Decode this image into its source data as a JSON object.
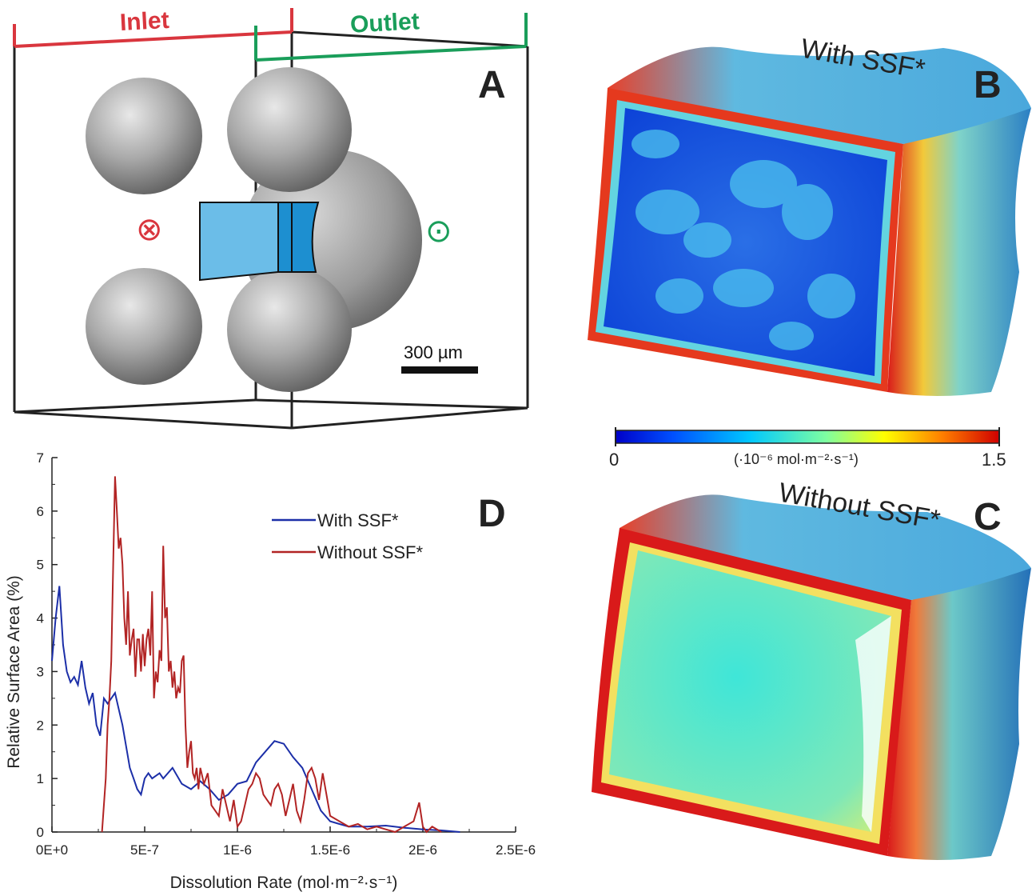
{
  "panelA": {
    "letter": "A",
    "inlet_label": "Inlet",
    "outlet_label": "Outlet",
    "scale_label": "300 µm",
    "inlet_symbol": "⊗",
    "outlet_symbol": "⊙",
    "colors": {
      "inlet": "#d9363e",
      "outlet": "#1a9e5a",
      "cube": "#6bbde8",
      "cube_dark": "#1d8fd0"
    }
  },
  "panelB": {
    "letter": "B",
    "title": "With SSF*"
  },
  "panelC": {
    "letter": "C",
    "title": "Without SSF*"
  },
  "colorbar": {
    "min_label": "0",
    "max_label": "1.5",
    "unit_label": "(·10⁻⁶ mol·m⁻²·s⁻¹)"
  },
  "panelD": {
    "letter": "D"
  },
  "chart_data": {
    "type": "line",
    "xlabel": "Dissolution Rate (mol·m⁻²·s⁻¹)",
    "ylabel": "Relative Surface Area (%)",
    "xlim": [
      0,
      2.5e-06
    ],
    "ylim": [
      0,
      7
    ],
    "xticks": [
      {
        "value": 0,
        "label": "0E+0"
      },
      {
        "value": 5e-07,
        "label": "5E-7"
      },
      {
        "value": 1e-06,
        "label": "1E-6"
      },
      {
        "value": 1.5e-06,
        "label": "1.5E-6"
      },
      {
        "value": 2e-06,
        "label": "2E-6"
      },
      {
        "value": 2.5e-06,
        "label": "2.5E-6"
      }
    ],
    "yticks": [
      {
        "value": 0,
        "label": "0"
      },
      {
        "value": 1,
        "label": "1"
      },
      {
        "value": 2,
        "label": "2"
      },
      {
        "value": 3,
        "label": "3"
      },
      {
        "value": 4,
        "label": "4"
      },
      {
        "value": 5,
        "label": "5"
      },
      {
        "value": 6,
        "label": "6"
      },
      {
        "value": 7,
        "label": "7"
      }
    ],
    "legend_position": "top-right",
    "series": [
      {
        "name": "With SSF*",
        "color": "#1c2fa8",
        "x": [
          0,
          2e-08,
          4e-08,
          6e-08,
          8e-08,
          1e-07,
          1.2e-07,
          1.4e-07,
          1.6e-07,
          1.8e-07,
          2e-07,
          2.2e-07,
          2.4e-07,
          2.6e-07,
          2.8e-07,
          3e-07,
          3.2e-07,
          3.4e-07,
          3.6e-07,
          3.8e-07,
          4e-07,
          4.2e-07,
          4.4e-07,
          4.6e-07,
          4.8e-07,
          5e-07,
          5.2e-07,
          5.4e-07,
          5.6e-07,
          5.8e-07,
          6e-07,
          6.5e-07,
          7e-07,
          7.5e-07,
          8e-07,
          8.5e-07,
          9e-07,
          9.5e-07,
          1e-06,
          1.05e-06,
          1.1e-06,
          1.15e-06,
          1.2e-06,
          1.25e-06,
          1.3e-06,
          1.35e-06,
          1.4e-06,
          1.45e-06,
          1.5e-06,
          1.55e-06,
          1.6e-06,
          1.7e-06,
          1.8e-06,
          1.9e-06,
          2e-06,
          2.1e-06,
          2.2e-06
        ],
        "values": [
          3.2,
          4.0,
          4.6,
          3.5,
          3.0,
          2.8,
          2.9,
          2.75,
          3.2,
          2.7,
          2.4,
          2.6,
          2.0,
          1.8,
          2.5,
          2.4,
          2.5,
          2.6,
          2.3,
          2.0,
          1.6,
          1.2,
          1.0,
          0.8,
          0.7,
          1.0,
          1.1,
          1.0,
          1.05,
          1.1,
          1.0,
          1.2,
          0.9,
          0.8,
          0.95,
          0.8,
          0.6,
          0.7,
          0.9,
          0.95,
          1.3,
          1.5,
          1.7,
          1.65,
          1.4,
          1.2,
          0.8,
          0.4,
          0.2,
          0.15,
          0.1,
          0.1,
          0.12,
          0.08,
          0.05,
          0.03,
          0.0
        ]
      },
      {
        "name": "Without SSF*",
        "color": "#b22424",
        "x": [
          2.7e-07,
          2.9e-07,
          3e-07,
          3.1e-07,
          3.2e-07,
          3.3e-07,
          3.4e-07,
          3.5e-07,
          3.6e-07,
          3.7e-07,
          3.8e-07,
          3.9e-07,
          4e-07,
          4.1e-07,
          4.2e-07,
          4.3e-07,
          4.4e-07,
          4.5e-07,
          4.6e-07,
          4.7e-07,
          4.8e-07,
          4.9e-07,
          5e-07,
          5.1e-07,
          5.2e-07,
          5.3e-07,
          5.4e-07,
          5.5e-07,
          5.6e-07,
          5.7e-07,
          5.8e-07,
          5.9e-07,
          6e-07,
          6.1e-07,
          6.2e-07,
          6.3e-07,
          6.4e-07,
          6.5e-07,
          6.6e-07,
          6.7e-07,
          6.8e-07,
          6.9e-07,
          7e-07,
          7.1e-07,
          7.2e-07,
          7.3e-07,
          7.4e-07,
          7.5e-07,
          7.6e-07,
          7.7e-07,
          7.8e-07,
          7.9e-07,
          8e-07,
          8.2e-07,
          8.4e-07,
          8.6e-07,
          8.8e-07,
          9e-07,
          9.2e-07,
          9.4e-07,
          9.6e-07,
          9.8e-07,
          1e-06,
          1.02e-06,
          1.04e-06,
          1.06e-06,
          1.08e-06,
          1.1e-06,
          1.12e-06,
          1.14e-06,
          1.16e-06,
          1.18e-06,
          1.2e-06,
          1.22e-06,
          1.24e-06,
          1.26e-06,
          1.28e-06,
          1.3e-06,
          1.32e-06,
          1.34e-06,
          1.36e-06,
          1.38e-06,
          1.4e-06,
          1.42e-06,
          1.44e-06,
          1.46e-06,
          1.48e-06,
          1.5e-06,
          1.55e-06,
          1.6e-06,
          1.65e-06,
          1.7e-06,
          1.75e-06,
          1.8e-06,
          1.85e-06,
          1.9e-06,
          1.95e-06,
          1.98e-06,
          2e-06,
          2.02e-06,
          2.05e-06,
          2.1e-06
        ],
        "values": [
          0.0,
          1.0,
          2.0,
          2.5,
          3.2,
          5.0,
          6.65,
          6.0,
          5.3,
          5.5,
          5.0,
          4.0,
          3.5,
          4.5,
          3.3,
          3.6,
          3.8,
          2.9,
          3.6,
          3.6,
          3.0,
          3.7,
          3.1,
          3.6,
          3.8,
          3.3,
          4.5,
          2.5,
          3.0,
          2.8,
          3.4,
          3.2,
          5.35,
          4.0,
          4.2,
          3.0,
          3.2,
          2.7,
          3.0,
          2.5,
          2.7,
          2.6,
          3.2,
          3.3,
          2.0,
          1.2,
          1.5,
          1.7,
          1.1,
          1.0,
          1.2,
          0.8,
          1.2,
          0.9,
          1.1,
          0.5,
          0.4,
          0.3,
          0.8,
          0.5,
          0.2,
          0.6,
          0.1,
          0.2,
          0.5,
          0.8,
          0.9,
          1.1,
          1.0,
          0.7,
          0.6,
          0.5,
          0.8,
          0.9,
          0.7,
          0.3,
          0.6,
          0.9,
          0.4,
          0.2,
          0.6,
          1.1,
          1.2,
          1.0,
          0.6,
          1.1,
          0.7,
          0.3,
          0.2,
          0.1,
          0.15,
          0.05,
          0.1,
          0.05,
          0.0,
          0.1,
          0.2,
          0.55,
          0.1,
          0.0,
          0.1,
          0.0
        ]
      }
    ]
  }
}
